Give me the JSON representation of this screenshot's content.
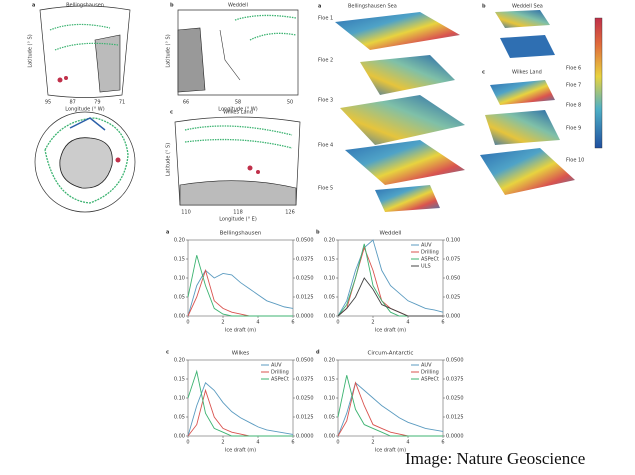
{
  "maps": {
    "a": {
      "label": "a",
      "title": "Bellingshausen",
      "xlabel": "Longitude (° W)",
      "ylabel": "Latitude (° S)",
      "xticks": [
        "95",
        "87",
        "79",
        "71"
      ]
    },
    "b": {
      "label": "b",
      "title": "Weddell",
      "xlabel": "Longitude (° W)",
      "ylabel": "Latitude (° S)",
      "xticks": [
        "66",
        "58",
        "50"
      ]
    },
    "c": {
      "label": "c",
      "title": "Wilkes Land",
      "xlabel": "Longitude (° E)",
      "ylabel": "Latitude (° S)",
      "xticks": [
        "110",
        "118",
        "126"
      ]
    }
  },
  "floes": {
    "groups": [
      {
        "label": "a",
        "title": "Bellingshausen Sea"
      },
      {
        "label": "b",
        "title": "Weddell Sea"
      },
      {
        "label": "c",
        "title": "Wilkes Land"
      }
    ],
    "left": [
      "Floe 1",
      "Floe 2",
      "Floe 3",
      "Floe 4",
      "Floe 5"
    ],
    "right": [
      "Floe 6",
      "Floe 7",
      "Floe 8",
      "Floe 9",
      "Floe 10"
    ]
  },
  "chart_data": [
    {
      "type": "line",
      "panel": "a",
      "title": "Bellingshausen",
      "x_label": "Ice draft (m)",
      "legend": "none",
      "x": [
        0,
        0.5,
        1,
        1.5,
        2,
        2.5,
        3,
        3.5,
        4,
        4.5,
        5,
        5.5,
        6
      ],
      "xlim": [
        0,
        6
      ],
      "xticks": [
        0,
        2,
        4,
        6
      ],
      "ylim": [
        0,
        0.2
      ],
      "yticks": [
        {
          "value": 0,
          "label": "0.00"
        },
        0.05,
        {
          "value": 0.1,
          "label": "0.10"
        },
        0.15,
        {
          "value": 0.2,
          "label": "0.20"
        }
      ],
      "y2lim": [
        0,
        0.05
      ],
      "y2ticks": [
        {
          "value": 0,
          "label": "0.0000"
        },
        0.0125,
        {
          "value": 0.025,
          "label": "0.0250"
        },
        0.0375,
        {
          "value": 0.05,
          "label": "0.0500"
        }
      ],
      "series": [
        {
          "name": "AUV",
          "color": "#5b9bc0",
          "axis": "y2",
          "values": [
            0,
            0.02,
            0.03,
            0.025,
            0.028,
            0.027,
            0.022,
            0.018,
            0.014,
            0.01,
            0.008,
            0.006,
            0.005
          ]
        },
        {
          "name": "Drilling",
          "color": "#d9534f",
          "values": [
            0,
            0.05,
            0.12,
            0.04,
            0.02,
            0.01,
            0.005,
            0,
            0,
            0,
            0,
            0,
            0
          ]
        },
        {
          "name": "ASPeCt",
          "color": "#3cb371",
          "values": [
            0.05,
            0.16,
            0.08,
            0.02,
            0.005,
            0,
            0,
            0,
            0,
            0,
            0,
            0,
            0
          ]
        }
      ]
    },
    {
      "type": "line",
      "panel": "b",
      "title": "Weddell",
      "x_label": "Ice draft (m)",
      "legend": "upper right",
      "x": [
        0,
        0.5,
        1,
        1.5,
        2,
        2.5,
        3,
        3.5,
        4,
        4.5,
        5,
        5.5,
        6
      ],
      "xlim": [
        0,
        6
      ],
      "xticks": [
        0,
        2,
        4,
        6
      ],
      "ylim": [
        0,
        0.2
      ],
      "yticks": [
        {
          "value": 0,
          "label": "0.00"
        },
        0.05,
        {
          "value": 0.1,
          "label": "0.10"
        },
        0.15,
        {
          "value": 0.2,
          "label": "0.20"
        }
      ],
      "y2lim": [
        0,
        0.1
      ],
      "y2ticks": [
        {
          "value": 0,
          "label": "0.000"
        },
        0.025,
        {
          "value": 0.05,
          "label": "0.050"
        },
        0.075,
        {
          "value": 0.1,
          "label": "0.100"
        }
      ],
      "series": [
        {
          "name": "AUV",
          "color": "#5b9bc0",
          "axis": "y2",
          "values": [
            0,
            0.02,
            0.06,
            0.09,
            0.1,
            0.06,
            0.04,
            0.03,
            0.02,
            0.015,
            0.01,
            0.008,
            0.005
          ]
        },
        {
          "name": "Drilling",
          "color": "#d9534f",
          "values": [
            0,
            0.02,
            0.1,
            0.18,
            0.12,
            0.04,
            0.02,
            0.01,
            0,
            0,
            0,
            0,
            0
          ]
        },
        {
          "name": "ASPeCt",
          "color": "#3cb371",
          "values": [
            0,
            0.03,
            0.1,
            0.19,
            0.08,
            0.04,
            0.01,
            0,
            0,
            0,
            0,
            0,
            0
          ]
        },
        {
          "name": "ULS",
          "color": "#444444",
          "values": [
            0,
            0.02,
            0.05,
            0.1,
            0.07,
            0.03,
            0.02,
            0.01,
            0,
            0,
            0,
            0,
            0
          ]
        }
      ]
    },
    {
      "type": "line",
      "panel": "c",
      "title": "Wilkes",
      "x_label": "Ice draft (m)",
      "legend": "upper right",
      "x": [
        0,
        0.5,
        1,
        1.5,
        2,
        2.5,
        3,
        3.5,
        4,
        4.5,
        5,
        5.5,
        6
      ],
      "xlim": [
        0,
        6
      ],
      "xticks": [
        0,
        2,
        4,
        6
      ],
      "ylim": [
        0,
        0.2
      ],
      "yticks": [
        {
          "value": 0,
          "label": "0.00"
        },
        0.05,
        {
          "value": 0.1,
          "label": "0.10"
        },
        0.15,
        {
          "value": 0.2,
          "label": "0.20"
        }
      ],
      "y2lim": [
        0,
        0.05
      ],
      "y2ticks": [
        {
          "value": 0,
          "label": "0.0000"
        },
        0.0125,
        {
          "value": 0.025,
          "label": "0.0250"
        },
        0.0375,
        {
          "value": 0.05,
          "label": "0.0500"
        }
      ],
      "series": [
        {
          "name": "AUV",
          "color": "#5b9bc0",
          "axis": "y2",
          "values": [
            0,
            0.02,
            0.035,
            0.03,
            0.022,
            0.016,
            0.012,
            0.009,
            0.006,
            0.004,
            0.003,
            0.002,
            0.001
          ]
        },
        {
          "name": "Drilling",
          "color": "#d9534f",
          "values": [
            0,
            0.03,
            0.12,
            0.05,
            0.02,
            0.01,
            0.005,
            0,
            0,
            0,
            0,
            0,
            0
          ]
        },
        {
          "name": "ASPeCt",
          "color": "#3cb371",
          "values": [
            0.1,
            0.17,
            0.06,
            0.02,
            0.01,
            0,
            0,
            0,
            0,
            0,
            0,
            0,
            0
          ]
        }
      ]
    },
    {
      "type": "line",
      "panel": "d",
      "title": "Circum-Antarctic",
      "x_label": "Ice draft (m)",
      "legend": "upper right",
      "x": [
        0,
        0.5,
        1,
        1.5,
        2,
        2.5,
        3,
        3.5,
        4,
        4.5,
        5,
        5.5,
        6
      ],
      "xlim": [
        0,
        6
      ],
      "xticks": [
        0,
        2,
        4,
        6
      ],
      "ylim": [
        0,
        0.2
      ],
      "yticks": [
        {
          "value": 0,
          "label": "0.00"
        },
        0.05,
        {
          "value": 0.1,
          "label": "0.10"
        },
        0.15,
        {
          "value": 0.2,
          "label": "0.20"
        }
      ],
      "y2lim": [
        0,
        0.05
      ],
      "y2ticks": [
        {
          "value": 0,
          "label": "0.0000"
        },
        0.0125,
        {
          "value": 0.025,
          "label": "0.0250"
        },
        0.0375,
        {
          "value": 0.05,
          "label": "0.0500"
        }
      ],
      "series": [
        {
          "name": "AUV",
          "color": "#5b9bc0",
          "axis": "y2",
          "values": [
            0,
            0.015,
            0.035,
            0.03,
            0.025,
            0.02,
            0.016,
            0.012,
            0.009,
            0.007,
            0.005,
            0.004,
            0.003
          ]
        },
        {
          "name": "Drilling",
          "color": "#d9534f",
          "values": [
            0,
            0.04,
            0.14,
            0.08,
            0.03,
            0.02,
            0.01,
            0.005,
            0,
            0,
            0,
            0,
            0
          ]
        },
        {
          "name": "ASPeCt",
          "color": "#3cb371",
          "values": [
            0.05,
            0.16,
            0.07,
            0.03,
            0.02,
            0.01,
            0,
            0,
            0,
            0,
            0,
            0,
            0
          ]
        }
      ]
    }
  ],
  "credit": "Image: Nature Geoscience"
}
